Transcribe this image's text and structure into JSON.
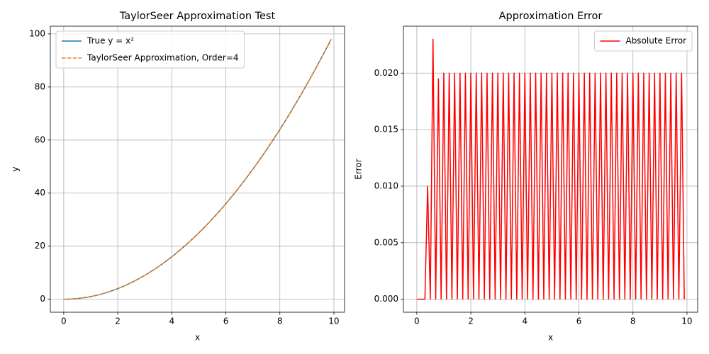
{
  "chart_data": [
    {
      "type": "line",
      "title": "TaylorSeer Approximation Test",
      "xlabel": "x",
      "ylabel": "y",
      "x": [
        0,
        0.1,
        0.2,
        0.3,
        0.4,
        0.5,
        0.6,
        0.7,
        0.8,
        0.9,
        1,
        1.1,
        1.2,
        1.3,
        1.4,
        1.5,
        1.6,
        1.7,
        1.8,
        1.9,
        2,
        2.1,
        2.2,
        2.3,
        2.4,
        2.5,
        2.6,
        2.7,
        2.8,
        2.9,
        3,
        3.1,
        3.2,
        3.3,
        3.4,
        3.5,
        3.6,
        3.7,
        3.8,
        3.9,
        4,
        4.1,
        4.2,
        4.3,
        4.4,
        4.5,
        4.6,
        4.7,
        4.8,
        4.9,
        5,
        5.1,
        5.2,
        5.3,
        5.4,
        5.5,
        5.6,
        5.7,
        5.8,
        5.9,
        6,
        6.1,
        6.2,
        6.3,
        6.4,
        6.5,
        6.6,
        6.7,
        6.8,
        6.9,
        7,
        7.1,
        7.2,
        7.3,
        7.4,
        7.5,
        7.6,
        7.7,
        7.8,
        7.9,
        8,
        8.1,
        8.2,
        8.3,
        8.4,
        8.5,
        8.6,
        8.7,
        8.8,
        8.9,
        9,
        9.1,
        9.2,
        9.3,
        9.4,
        9.5,
        9.6,
        9.7,
        9.8,
        9.9
      ],
      "series": [
        {
          "name": "True y = x²",
          "color": "#1f77b4",
          "dash": false,
          "values": [
            0,
            0.01,
            0.04,
            0.09,
            0.16,
            0.25,
            0.36,
            0.49,
            0.64,
            0.81,
            1,
            1.21,
            1.44,
            1.69,
            1.96,
            2.25,
            2.56,
            2.89,
            3.24,
            3.61,
            4,
            4.41,
            4.84,
            5.29,
            5.76,
            6.25,
            6.76,
            7.29,
            7.84,
            8.41,
            9,
            9.61,
            10.24,
            10.89,
            11.56,
            12.25,
            12.96,
            13.69,
            14.44,
            15.21,
            16,
            16.81,
            17.64,
            18.49,
            19.36,
            20.25,
            21.16,
            22.09,
            23.04,
            24.01,
            25,
            26.01,
            27.04,
            28.09,
            29.16,
            30.25,
            31.36,
            32.49,
            33.64,
            34.81,
            36,
            37.21,
            38.44,
            39.69,
            40.96,
            42.25,
            43.56,
            44.89,
            46.24,
            47.61,
            49,
            50.41,
            51.84,
            53.29,
            54.76,
            56.25,
            57.76,
            59.29,
            60.84,
            62.41,
            64,
            65.61,
            67.24,
            68.89,
            70.56,
            72.25,
            73.96,
            75.69,
            77.44,
            79.21,
            81,
            82.81,
            84.64,
            86.49,
            88.36,
            90.25,
            92.16,
            94.09,
            96.04,
            98.01
          ]
        },
        {
          "name": "TaylorSeer Approximation, Order=4",
          "color": "#ff7f0e",
          "dash": true,
          "values": [
            0,
            0.01,
            0.04,
            0.09,
            0.17,
            0.25,
            0.383,
            0.49,
            0.6595,
            0.81,
            1.02,
            1.21,
            1.46,
            1.69,
            1.98,
            2.25,
            2.58,
            2.89,
            3.26,
            3.61,
            4.02,
            4.41,
            4.86,
            5.29,
            5.78,
            6.25,
            6.78,
            7.29,
            7.86,
            8.41,
            9.02,
            9.61,
            10.26,
            10.89,
            11.58,
            12.25,
            12.98,
            13.69,
            14.46,
            15.21,
            16.02,
            16.81,
            17.66,
            18.49,
            19.38,
            20.25,
            21.18,
            22.09,
            23.06,
            24.01,
            25.02,
            26.01,
            27.06,
            28.09,
            29.18,
            30.25,
            31.38,
            32.49,
            33.66,
            34.81,
            36.02,
            37.21,
            38.46,
            39.69,
            40.98,
            42.25,
            43.58,
            44.89,
            46.26,
            47.61,
            49.02,
            50.41,
            51.86,
            53.29,
            54.78,
            56.25,
            57.78,
            59.29,
            60.86,
            62.41,
            64.02,
            65.61,
            67.26,
            68.89,
            70.58,
            72.25,
            73.98,
            75.69,
            77.46,
            79.21,
            81.02,
            82.81,
            84.66,
            86.49,
            88.38,
            90.25,
            92.18,
            94.09,
            96.06,
            98.01
          ]
        }
      ],
      "xlim": [
        -0.495,
        10.395
      ],
      "xticks": [
        0,
        2,
        4,
        6,
        8,
        10
      ],
      "ylim": [
        -4.9,
        102.91
      ],
      "yticks": [
        0,
        20,
        40,
        60,
        80,
        100
      ],
      "grid": true,
      "legend": "upper left"
    },
    {
      "type": "line",
      "title": "Approximation Error",
      "xlabel": "x",
      "ylabel": "Error",
      "x": [
        0,
        0.1,
        0.2,
        0.3,
        0.4,
        0.5,
        0.6,
        0.7,
        0.8,
        0.9,
        1,
        1.1,
        1.2,
        1.3,
        1.4,
        1.5,
        1.6,
        1.7,
        1.8,
        1.9,
        2,
        2.1,
        2.2,
        2.3,
        2.4,
        2.5,
        2.6,
        2.7,
        2.8,
        2.9,
        3,
        3.1,
        3.2,
        3.3,
        3.4,
        3.5,
        3.6,
        3.7,
        3.8,
        3.9,
        4,
        4.1,
        4.2,
        4.3,
        4.4,
        4.5,
        4.6,
        4.7,
        4.8,
        4.9,
        5,
        5.1,
        5.2,
        5.3,
        5.4,
        5.5,
        5.6,
        5.7,
        5.8,
        5.9,
        6,
        6.1,
        6.2,
        6.3,
        6.4,
        6.5,
        6.6,
        6.7,
        6.8,
        6.9,
        7,
        7.1,
        7.2,
        7.3,
        7.4,
        7.5,
        7.6,
        7.7,
        7.8,
        7.9,
        8,
        8.1,
        8.2,
        8.3,
        8.4,
        8.5,
        8.6,
        8.7,
        8.8,
        8.9,
        9,
        9.1,
        9.2,
        9.3,
        9.4,
        9.5,
        9.6,
        9.7,
        9.8,
        9.9
      ],
      "series": [
        {
          "name": "Absolute Error",
          "color": "#ff0000",
          "dash": false,
          "values": [
            0,
            0,
            0,
            0,
            0.01,
            0,
            0.023,
            0,
            0.0195,
            0,
            0.02,
            0,
            0.02,
            0,
            0.02,
            0,
            0.02,
            0,
            0.02,
            0,
            0.02,
            0,
            0.02,
            0,
            0.02,
            0,
            0.02,
            0,
            0.02,
            0,
            0.02,
            0,
            0.02,
            0,
            0.02,
            0,
            0.02,
            0,
            0.02,
            0,
            0.02,
            0,
            0.02,
            0,
            0.02,
            0,
            0.02,
            0,
            0.02,
            0,
            0.02,
            0,
            0.02,
            0,
            0.02,
            0,
            0.02,
            0,
            0.02,
            0,
            0.02,
            0,
            0.02,
            0,
            0.02,
            0,
            0.02,
            0,
            0.02,
            0,
            0.02,
            0,
            0.02,
            0,
            0.02,
            0,
            0.02,
            0,
            0.02,
            0,
            0.02,
            0,
            0.02,
            0,
            0.02,
            0,
            0.02,
            0,
            0.02,
            0,
            0.02,
            0,
            0.02,
            0,
            0.02,
            0,
            0.02,
            0,
            0.02,
            0
          ]
        }
      ],
      "xlim": [
        -0.495,
        10.395
      ],
      "xticks": [
        0,
        2,
        4,
        6,
        8,
        10
      ],
      "ylim": [
        -0.00115,
        0.02415
      ],
      "yticks": [
        {
          "value": 0,
          "label": "0.000"
        },
        {
          "value": 0.005,
          "label": "0.005"
        },
        {
          "value": 0.01,
          "label": "0.010"
        },
        {
          "value": 0.015,
          "label": "0.015"
        },
        {
          "value": 0.02,
          "label": "0.020"
        }
      ],
      "grid": true,
      "legend": "upper right"
    }
  ]
}
